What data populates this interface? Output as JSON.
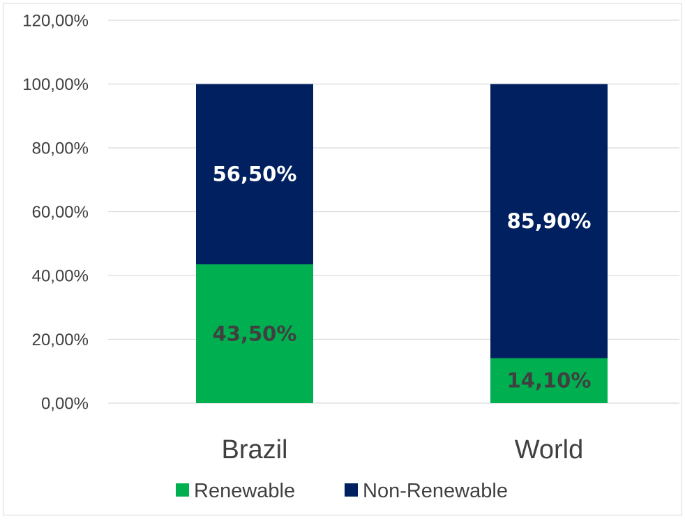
{
  "chart_data": {
    "type": "bar",
    "stacked": true,
    "categories": [
      "Brazil",
      "World"
    ],
    "series": [
      {
        "name": "Renewable",
        "values": [
          43.5,
          14.1
        ],
        "labels": [
          "43,50%",
          "14,10%"
        ],
        "color": "#00b050",
        "label_color": "#404040"
      },
      {
        "name": "Non-Renewable",
        "values": [
          56.5,
          85.9
        ],
        "labels": [
          "56,50%",
          "85,90%"
        ],
        "color": "#002060",
        "label_color": "#ffffff"
      }
    ],
    "ylim": [
      0,
      120
    ],
    "yticks": [
      0,
      20,
      40,
      60,
      80,
      100,
      120
    ],
    "ytick_labels": [
      "0,00%",
      "20,00%",
      "40,00%",
      "60,00%",
      "80,00%",
      "100,00%",
      "120,00%"
    ],
    "grid": true,
    "legend": "bottom"
  }
}
